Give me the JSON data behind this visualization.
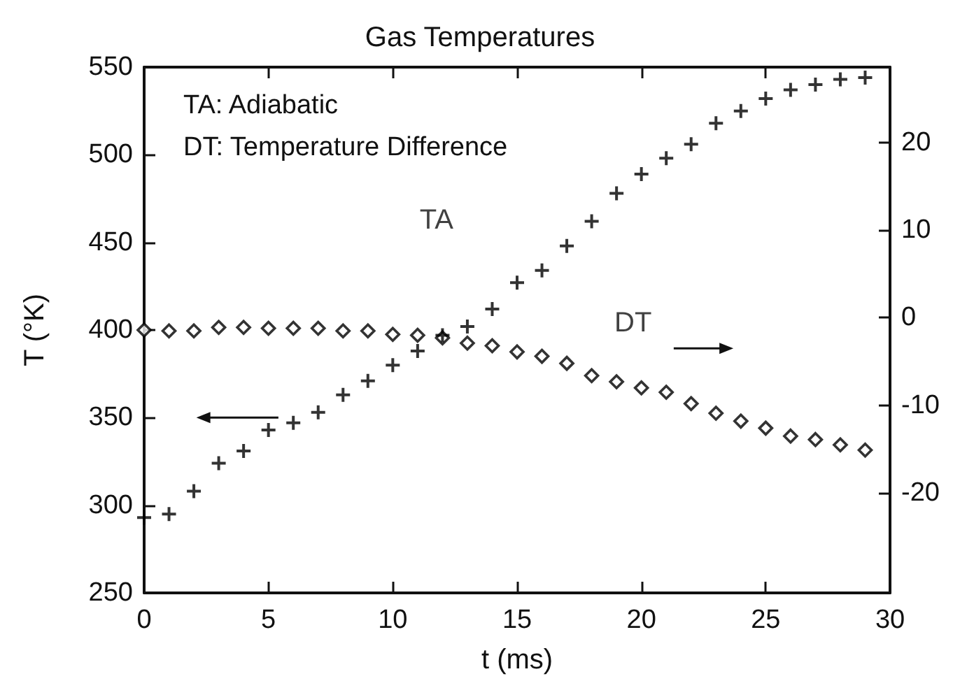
{
  "chart_data": {
    "type": "scatter",
    "title": "Gas Temperatures",
    "xlabel": "t (ms)",
    "ylabel": "T (°K)",
    "annotations": [
      "TA: Adiabatic",
      "DT: Temperature Difference"
    ],
    "x": [
      0,
      1,
      2,
      3,
      4,
      5,
      6,
      7,
      8,
      9,
      10,
      11,
      12,
      13,
      14,
      15,
      16,
      17,
      18,
      19,
      20,
      21,
      22,
      23,
      24,
      25,
      26,
      27,
      28,
      29
    ],
    "series": [
      {
        "name": "TA",
        "color": "#000000",
        "marker": "cross",
        "values": [
          293,
          295,
          308,
          324,
          331,
          343,
          347,
          353,
          363,
          371,
          380,
          388,
          397,
          402,
          412,
          427,
          434,
          448,
          462,
          478,
          489,
          498,
          506,
          518,
          525,
          532,
          537,
          540,
          543,
          544
        ]
      },
      {
        "name": "DT",
        "color": "#000000",
        "marker": "diamond",
        "axis": "y2",
        "values": [
          -1.4,
          -1.5,
          -1.5,
          -1.1,
          -1.1,
          -1.2,
          -1.2,
          -1.2,
          -1.5,
          -1.5,
          -1.9,
          -2.0,
          -2.3,
          -2.9,
          -3.2,
          -3.9,
          -4.4,
          -5.2,
          -6.6,
          -7.3,
          -8.0,
          -8.5,
          -9.8,
          -10.9,
          -11.8,
          -12.6,
          -13.5,
          -13.9,
          -14.5,
          -15.1
        ]
      }
    ],
    "xlim": [
      0,
      30
    ],
    "xticks": [
      0,
      5,
      10,
      15,
      20,
      25,
      30
    ],
    "ylim": [
      250,
      550
    ],
    "yticks": [
      250,
      300,
      350,
      400,
      450,
      500,
      550
    ],
    "y2lim": [
      -31.4,
      28.6
    ],
    "y2ticks": [
      -20,
      -10,
      0,
      10,
      20
    ],
    "grid": false,
    "legend": false
  }
}
